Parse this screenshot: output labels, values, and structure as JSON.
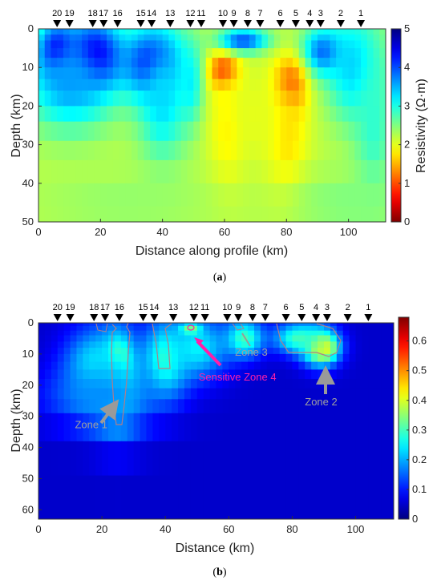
{
  "chart_data": [
    {
      "type": "heatmap",
      "panel_label": "a",
      "xlabel": "Distance along profile (km)",
      "ylabel": "Depth (km)",
      "colorbar_label": "Resistivity (Ω·m)",
      "xlim": [
        0,
        112
      ],
      "ylim": [
        0,
        50
      ],
      "y_inverted": true,
      "xticks": [
        0,
        20,
        40,
        60,
        80,
        100
      ],
      "yticks": [
        0,
        10,
        20,
        30,
        40,
        50
      ],
      "clim": [
        0,
        5
      ],
      "cticks": [
        0,
        1,
        2,
        3,
        4,
        5
      ],
      "colormap": "jet-reversed",
      "stations": [
        {
          "label": "20",
          "x": 6.0
        },
        {
          "label": "19",
          "x": 10.0
        },
        {
          "label": "18",
          "x": 17.5
        },
        {
          "label": "17",
          "x": 21.0
        },
        {
          "label": "16",
          "x": 25.5
        },
        {
          "label": "15",
          "x": 33.0
        },
        {
          "label": "14",
          "x": 36.5
        },
        {
          "label": "13",
          "x": 42.5
        },
        {
          "label": "12",
          "x": 49.0
        },
        {
          "label": "11",
          "x": 52.5
        },
        {
          "label": "10",
          "x": 59.5
        },
        {
          "label": "9",
          "x": 63.0
        },
        {
          "label": "8",
          "x": 67.5
        },
        {
          "label": "7",
          "x": 71.5
        },
        {
          "label": "6",
          "x": 78.0
        },
        {
          "label": "5",
          "x": 83.0
        },
        {
          "label": "4",
          "x": 87.5
        },
        {
          "label": "3",
          "x": 91.0
        },
        {
          "label": "2",
          "x": 97.5
        },
        {
          "label": "1",
          "x": 104.0
        }
      ],
      "background": 2.2,
      "features": [
        {
          "cx": 6,
          "cy": 6,
          "rx": 6,
          "ry": 7,
          "value": 4.9
        },
        {
          "cx": 18,
          "cy": 7,
          "rx": 9,
          "ry": 9,
          "value": 4.9
        },
        {
          "cx": 10,
          "cy": 14,
          "rx": 14,
          "ry": 12,
          "value": 3.6
        },
        {
          "cx": 37,
          "cy": 9,
          "rx": 9,
          "ry": 9,
          "value": 4.7
        },
        {
          "cx": 40,
          "cy": 18,
          "rx": 8,
          "ry": 16,
          "value": 3.3
        },
        {
          "cx": 49,
          "cy": 14,
          "rx": 4,
          "ry": 10,
          "value": 3.2
        },
        {
          "cx": 92,
          "cy": 6,
          "rx": 7,
          "ry": 6,
          "value": 4.0
        },
        {
          "cx": 102,
          "cy": 10,
          "rx": 9,
          "ry": 14,
          "value": 3.4
        },
        {
          "cx": 108,
          "cy": 25,
          "rx": 6,
          "ry": 20,
          "value": 2.9
        },
        {
          "cx": 60,
          "cy": 11,
          "rx": 4.5,
          "ry": 5,
          "value": 0.5
        },
        {
          "cx": 61,
          "cy": 26,
          "rx": 6,
          "ry": 16,
          "value": 1.8
        },
        {
          "cx": 81,
          "cy": 15,
          "rx": 5,
          "ry": 7,
          "value": 0.7
        },
        {
          "cx": 80,
          "cy": 28,
          "rx": 7,
          "ry": 16,
          "value": 1.7
        },
        {
          "cx": 70,
          "cy": 22,
          "rx": 8,
          "ry": 12,
          "value": 2.0
        },
        {
          "cx": 66,
          "cy": 3,
          "rx": 8,
          "ry": 3,
          "value": 4.0
        },
        {
          "cx": 28,
          "cy": 45,
          "rx": 30,
          "ry": 8,
          "value": 2.4
        },
        {
          "cx": 100,
          "cy": 45,
          "rx": 20,
          "ry": 8,
          "value": 2.5
        }
      ]
    },
    {
      "type": "heatmap",
      "panel_label": "b",
      "xlabel": "Distance (km)",
      "ylabel": "Depth (km)",
      "xlim": [
        0,
        112
      ],
      "ylim": [
        0,
        63
      ],
      "y_inverted": true,
      "xticks": [
        0,
        20,
        40,
        60,
        80,
        100
      ],
      "yticks": [
        0,
        10,
        20,
        30,
        40,
        50,
        60
      ],
      "clim": [
        0,
        0.68
      ],
      "cticks": [
        0,
        0.1,
        0.2,
        0.3,
        0.4,
        0.5,
        0.6
      ],
      "colormap": "jet",
      "background": 0.05,
      "features": [
        {
          "cx": 25,
          "cy": 12,
          "rx": 2.5,
          "ry": 4,
          "value": 0.68
        },
        {
          "cx": 25,
          "cy": 16,
          "rx": 4,
          "ry": 10,
          "value": 0.5
        },
        {
          "cx": 25,
          "cy": 20,
          "rx": 8,
          "ry": 16,
          "value": 0.27
        },
        {
          "cx": 18,
          "cy": 14,
          "rx": 10,
          "ry": 12,
          "value": 0.25
        },
        {
          "cx": 40,
          "cy": 12,
          "rx": 7,
          "ry": 12,
          "value": 0.3
        },
        {
          "cx": 90,
          "cy": 8,
          "rx": 3,
          "ry": 3,
          "value": 0.55
        },
        {
          "cx": 89,
          "cy": 8,
          "rx": 6,
          "ry": 6,
          "value": 0.4
        },
        {
          "cx": 82,
          "cy": 5,
          "rx": 8,
          "ry": 5,
          "value": 0.3
        },
        {
          "cx": 50,
          "cy": 8,
          "rx": 10,
          "ry": 10,
          "value": 0.25
        },
        {
          "cx": 65,
          "cy": 5,
          "rx": 6,
          "ry": 6,
          "value": 0.3
        },
        {
          "cx": 20,
          "cy": 24,
          "rx": 18,
          "ry": 10,
          "value": 0.18
        },
        {
          "cx": 48,
          "cy": 2,
          "rx": 3,
          "ry": 1.5,
          "value": 0.35
        }
      ],
      "annotations": [
        {
          "text": "Zone 1",
          "x": 11.5,
          "y": 33.8,
          "color": "#a0a0a0"
        },
        {
          "text": "Zone 2",
          "x": 84,
          "y": 26.5,
          "color": "#a0a0a0"
        },
        {
          "text": "Zone 3",
          "x": 62,
          "y": 10.5,
          "color": "#a0a0a0"
        },
        {
          "text": "Sensitive Zone 4",
          "x": 50.5,
          "y": 18.5,
          "color": "#ff1fa8"
        }
      ]
    }
  ],
  "captions": {
    "a_open": "(",
    "a_letter": "a",
    "a_close": ")",
    "b_open": "(",
    "b_letter": "b",
    "b_close": ")"
  }
}
